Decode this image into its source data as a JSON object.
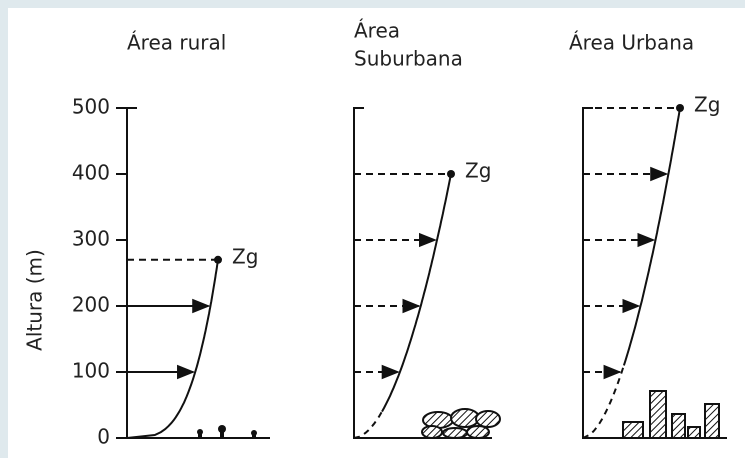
{
  "y_axis": {
    "label": "Altura (m)",
    "ticks": [
      0,
      100,
      200,
      300,
      400,
      500
    ]
  },
  "panels": [
    {
      "title": [
        "Área rural"
      ],
      "gradient_label": "Zg",
      "gradient_height": 270,
      "arrow_heights": [
        100,
        200
      ]
    },
    {
      "title": [
        "Área",
        "Suburbana"
      ],
      "gradient_label": "Zg",
      "gradient_height": 400,
      "arrow_heights": [
        100,
        200,
        300
      ]
    },
    {
      "title": [
        "Área Urbana"
      ],
      "gradient_label": "Zg",
      "gradient_height": 500,
      "arrow_heights": [
        100,
        200,
        300,
        400
      ]
    }
  ]
}
